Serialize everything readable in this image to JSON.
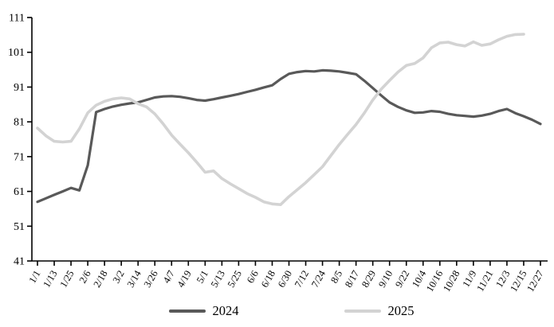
{
  "chart_data": {
    "type": "line",
    "title": "",
    "xlabel": "",
    "ylabel": "",
    "grid": false,
    "background_color": "#ffffff",
    "axis_color": "#000000",
    "legend_position": "bottom",
    "y_axis": {
      "range": [
        41,
        111
      ],
      "tick_step": 10,
      "ticks": [
        41,
        51,
        61,
        71,
        81,
        91,
        101,
        111
      ]
    },
    "x_axis": {
      "tick_labels": [
        "1/1",
        "1/13",
        "1/25",
        "2/6",
        "2/18",
        "3/2",
        "3/14",
        "3/26",
        "4/7",
        "4/19",
        "5/1",
        "5/13",
        "5/25",
        "6/6",
        "6/18",
        "6/30",
        "7/12",
        "7/24",
        "8/5",
        "8/17",
        "8/29",
        "9/10",
        "9/22",
        "10/4",
        "10/16",
        "10/28",
        "11/9",
        "11/21",
        "12/3",
        "12/15",
        "12/27"
      ],
      "points": [
        "1/1",
        "1/7",
        "1/13",
        "1/19",
        "1/25",
        "1/31",
        "2/6",
        "2/12",
        "2/18",
        "2/24",
        "3/2",
        "3/8",
        "3/14",
        "3/20",
        "3/26",
        "4/1",
        "4/7",
        "4/13",
        "4/19",
        "4/25",
        "5/1",
        "5/7",
        "5/13",
        "5/19",
        "5/25",
        "5/31",
        "6/6",
        "6/12",
        "6/18",
        "6/24",
        "6/30",
        "7/6",
        "7/12",
        "7/18",
        "7/24",
        "7/30",
        "8/5",
        "8/11",
        "8/17",
        "8/23",
        "8/29",
        "9/4",
        "9/10",
        "9/16",
        "9/22",
        "9/28",
        "10/4",
        "10/10",
        "10/16",
        "10/22",
        "10/28",
        "11/3",
        "11/9",
        "11/15",
        "11/21",
        "11/27",
        "12/3",
        "12/9",
        "12/15",
        "12/21",
        "12/27"
      ]
    },
    "series": [
      {
        "name": "2024",
        "color": "#595959",
        "values": [
          58,
          59,
          60,
          61,
          62,
          61.3,
          68.5,
          83.8,
          84.7,
          85.4,
          85.9,
          86.3,
          86.6,
          87.3,
          88,
          88.3,
          88.4,
          88.2,
          87.8,
          87.3,
          87.1,
          87.5,
          88,
          88.5,
          89,
          89.6,
          90.2,
          90.9,
          91.5,
          93.3,
          94.8,
          95.3,
          95.6,
          95.5,
          95.8,
          95.7,
          95.5,
          95.1,
          94.7,
          92.8,
          90.7,
          88.6,
          86.6,
          85.3,
          84.3,
          83.6,
          83.7,
          84.1,
          83.9,
          83.3,
          82.9,
          82.7,
          82.5,
          82.8,
          83.3,
          84.1,
          84.7,
          83.5,
          82.6,
          81.6,
          80.4
        ]
      },
      {
        "name": "2025",
        "color": "#d3d3d3",
        "values": [
          79.2,
          77,
          75.4,
          75.2,
          75.4,
          79,
          83.6,
          85.8,
          86.9,
          87.6,
          87.9,
          87.6,
          86.2,
          85.3,
          83.3,
          80.4,
          77.2,
          74.6,
          72.1,
          69.4,
          66.5,
          66.9,
          64.7,
          63.2,
          61.8,
          60.4,
          59.3,
          58,
          57.4,
          57.2,
          59.5,
          61.5,
          63.5,
          65.8,
          68.1,
          71.3,
          74.5,
          77.4,
          80.2,
          83.6,
          87.3,
          90.4,
          92.9,
          95.3,
          97.2,
          97.8,
          99.4,
          102.3,
          103.7,
          103.9,
          103.2,
          102.8,
          104,
          103,
          103.4,
          104.6,
          105.6,
          106.1,
          106.2,
          null,
          null
        ]
      }
    ]
  }
}
